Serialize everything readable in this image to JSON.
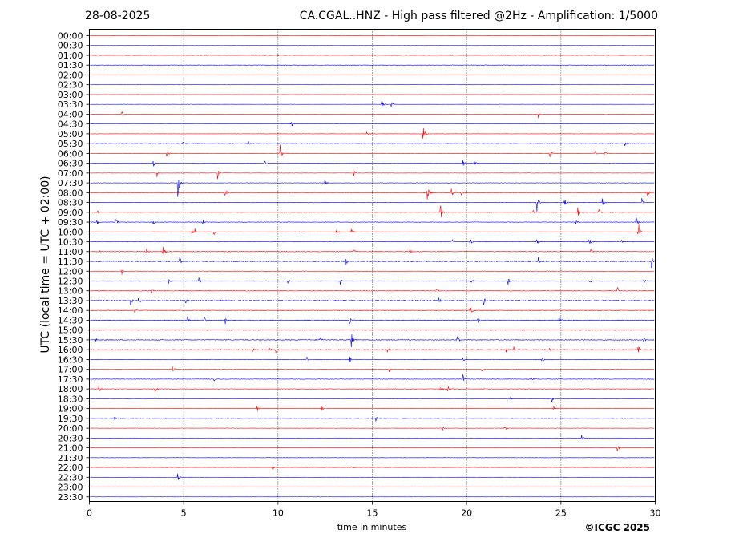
{
  "header": {
    "date": "28-08-2025",
    "title": "CA.CGAL..HNZ - High pass filtered @2Hz - Amplification: 1/5000"
  },
  "footer": {
    "copyright": "©ICGC 2025"
  },
  "chart_data": {
    "type": "line",
    "title": "CA.CGAL..HNZ - High pass filtered @2Hz - Amplification: 1/5000",
    "xlabel": "time in minutes",
    "ylabel": "UTC (local time = UTC + 02:00)",
    "xlim": [
      0,
      30
    ],
    "x_ticks": [
      0,
      5,
      10,
      15,
      20,
      25,
      30
    ],
    "grid_x": [
      5,
      10,
      15,
      20,
      25
    ],
    "grid_style": "dotted vertical lines",
    "colors": [
      "#ff0000",
      "#0000ff"
    ],
    "rows": [
      "00:00",
      "00:30",
      "01:00",
      "01:30",
      "02:00",
      "02:30",
      "03:00",
      "03:30",
      "04:00",
      "04:30",
      "05:00",
      "05:30",
      "06:00",
      "06:30",
      "07:00",
      "07:30",
      "08:00",
      "08:30",
      "09:00",
      "09:30",
      "10:00",
      "10:30",
      "11:00",
      "11:30",
      "12:00",
      "12:30",
      "13:00",
      "13:30",
      "14:00",
      "14:30",
      "15:00",
      "15:30",
      "16:00",
      "16:30",
      "17:00",
      "17:30",
      "18:00",
      "18:30",
      "19:00",
      "19:30",
      "20:00",
      "20:30",
      "21:00",
      "21:30",
      "22:00",
      "22:30",
      "23:00",
      "23:30"
    ],
    "noise_level": [
      1,
      1,
      2,
      3,
      1,
      1,
      1,
      1,
      2,
      1,
      2,
      3,
      2,
      2,
      2,
      2,
      3,
      3,
      3,
      3,
      3,
      4,
      4,
      5,
      3,
      5,
      4,
      6,
      4,
      5,
      4,
      5,
      4,
      3,
      3,
      3,
      3,
      2,
      2,
      2,
      2,
      2,
      2,
      2,
      2,
      1,
      1,
      1
    ],
    "events": [
      {
        "row": "03:30",
        "minute": 15.5,
        "amplitude": 6
      },
      {
        "row": "03:30",
        "minute": 16.0,
        "amplitude": 5
      },
      {
        "row": "04:00",
        "minute": 1.7,
        "amplitude": 6
      },
      {
        "row": "04:00",
        "minute": 23.8,
        "amplitude": 6
      },
      {
        "row": "04:30",
        "minute": 10.7,
        "amplitude": 6
      },
      {
        "row": "05:00",
        "minute": 14.7,
        "amplitude": 5
      },
      {
        "row": "05:00",
        "minute": 17.7,
        "amplitude": 14
      },
      {
        "row": "05:30",
        "minute": 4.9,
        "amplitude": 6
      },
      {
        "row": "05:30",
        "minute": 8.4,
        "amplitude": 5
      },
      {
        "row": "05:30",
        "minute": 28.4,
        "amplitude": 4
      },
      {
        "row": "06:00",
        "minute": 4.1,
        "amplitude": 7
      },
      {
        "row": "06:00",
        "minute": 10.1,
        "amplitude": 20
      },
      {
        "row": "06:00",
        "minute": 24.4,
        "amplitude": 7
      },
      {
        "row": "06:00",
        "minute": 26.8,
        "amplitude": 6
      },
      {
        "row": "06:00",
        "minute": 27.3,
        "amplitude": 5
      },
      {
        "row": "06:30",
        "minute": 3.4,
        "amplitude": 6
      },
      {
        "row": "06:30",
        "minute": 9.3,
        "amplitude": 5
      },
      {
        "row": "06:30",
        "minute": 19.8,
        "amplitude": 5
      },
      {
        "row": "06:30",
        "minute": 20.4,
        "amplitude": 5
      },
      {
        "row": "07:00",
        "minute": 3.6,
        "amplitude": 6
      },
      {
        "row": "07:00",
        "minute": 6.8,
        "amplitude": 9
      },
      {
        "row": "07:00",
        "minute": 14.0,
        "amplitude": 6
      },
      {
        "row": "07:30",
        "minute": 4.7,
        "amplitude": 18
      },
      {
        "row": "07:30",
        "minute": 12.5,
        "amplitude": 5
      },
      {
        "row": "08:00",
        "minute": 7.2,
        "amplitude": 7
      },
      {
        "row": "08:00",
        "minute": 17.9,
        "amplitude": 14
      },
      {
        "row": "08:00",
        "minute": 19.2,
        "amplitude": 5
      },
      {
        "row": "08:00",
        "minute": 19.7,
        "amplitude": 5
      },
      {
        "row": "08:00",
        "minute": 29.6,
        "amplitude": 5
      },
      {
        "row": "08:30",
        "minute": 23.7,
        "amplitude": 18
      },
      {
        "row": "08:30",
        "minute": 25.2,
        "amplitude": 6
      },
      {
        "row": "08:30",
        "minute": 27.2,
        "amplitude": 6
      },
      {
        "row": "08:30",
        "minute": 29.3,
        "amplitude": 6
      },
      {
        "row": "09:00",
        "minute": 18.6,
        "amplitude": 14
      },
      {
        "row": "09:00",
        "minute": 23.5,
        "amplitude": 5
      },
      {
        "row": "09:00",
        "minute": 25.9,
        "amplitude": 6
      },
      {
        "row": "09:00",
        "minute": 27.0,
        "amplitude": 5
      },
      {
        "row": "09:00",
        "minute": 0.4,
        "amplitude": 5
      },
      {
        "row": "09:30",
        "minute": 0.4,
        "amplitude": 5
      },
      {
        "row": "09:30",
        "minute": 1.4,
        "amplitude": 7
      },
      {
        "row": "09:30",
        "minute": 3.4,
        "amplitude": 5
      },
      {
        "row": "09:30",
        "minute": 6.0,
        "amplitude": 5
      },
      {
        "row": "09:30",
        "minute": 25.8,
        "amplitude": 5
      },
      {
        "row": "09:30",
        "minute": 29.0,
        "amplitude": 7
      },
      {
        "row": "10:00",
        "minute": 5.4,
        "amplitude": 5
      },
      {
        "row": "10:00",
        "minute": 5.6,
        "amplitude": 5
      },
      {
        "row": "10:00",
        "minute": 6.6,
        "amplitude": 4
      },
      {
        "row": "10:00",
        "minute": 13.1,
        "amplitude": 4
      },
      {
        "row": "10:00",
        "minute": 13.9,
        "amplitude": 4
      },
      {
        "row": "10:00",
        "minute": 29.1,
        "amplitude": 16
      },
      {
        "row": "10:30",
        "minute": 19.2,
        "amplitude": 5
      },
      {
        "row": "10:30",
        "minute": 20.2,
        "amplitude": 4
      },
      {
        "row": "10:30",
        "minute": 23.7,
        "amplitude": 5
      },
      {
        "row": "10:30",
        "minute": 26.5,
        "amplitude": 5
      },
      {
        "row": "10:30",
        "minute": 28.2,
        "amplitude": 3
      },
      {
        "row": "11:00",
        "minute": 0.5,
        "amplitude": 5
      },
      {
        "row": "11:00",
        "minute": 3.0,
        "amplitude": 5
      },
      {
        "row": "11:00",
        "minute": 3.9,
        "amplitude": 12
      },
      {
        "row": "11:00",
        "minute": 14.0,
        "amplitude": 5
      },
      {
        "row": "11:00",
        "minute": 17.0,
        "amplitude": 5
      },
      {
        "row": "11:00",
        "minute": 26.6,
        "amplitude": 4
      },
      {
        "row": "11:30",
        "minute": 4.8,
        "amplitude": 5
      },
      {
        "row": "11:30",
        "minute": 13.6,
        "amplitude": 5
      },
      {
        "row": "11:30",
        "minute": 23.8,
        "amplitude": 6
      },
      {
        "row": "11:30",
        "minute": 29.8,
        "amplitude": 10
      },
      {
        "row": "12:00",
        "minute": 1.7,
        "amplitude": 6
      },
      {
        "row": "12:30",
        "minute": 4.2,
        "amplitude": 4
      },
      {
        "row": "12:30",
        "minute": 5.8,
        "amplitude": 5
      },
      {
        "row": "12:30",
        "minute": 10.5,
        "amplitude": 4
      },
      {
        "row": "12:30",
        "minute": 13.3,
        "amplitude": 5
      },
      {
        "row": "12:30",
        "minute": 20.2,
        "amplitude": 5
      },
      {
        "row": "12:30",
        "minute": 22.2,
        "amplitude": 6
      },
      {
        "row": "12:30",
        "minute": 26.5,
        "amplitude": 5
      },
      {
        "row": "12:30",
        "minute": 29.4,
        "amplitude": 5
      },
      {
        "row": "13:00",
        "minute": 3.3,
        "amplitude": 4
      },
      {
        "row": "13:00",
        "minute": 18.4,
        "amplitude": 4
      },
      {
        "row": "13:00",
        "minute": 28.0,
        "amplitude": 5
      },
      {
        "row": "13:30",
        "minute": 2.2,
        "amplitude": 6
      },
      {
        "row": "13:30",
        "minute": 2.6,
        "amplitude": 6
      },
      {
        "row": "13:30",
        "minute": 5.1,
        "amplitude": 5
      },
      {
        "row": "13:30",
        "minute": 18.5,
        "amplitude": 5
      },
      {
        "row": "13:30",
        "minute": 20.9,
        "amplitude": 6
      },
      {
        "row": "14:00",
        "minute": 2.4,
        "amplitude": 5
      },
      {
        "row": "14:00",
        "minute": 20.2,
        "amplitude": 7
      },
      {
        "row": "14:30",
        "minute": 5.2,
        "amplitude": 5
      },
      {
        "row": "14:30",
        "minute": 6.1,
        "amplitude": 5
      },
      {
        "row": "14:30",
        "minute": 7.2,
        "amplitude": 6
      },
      {
        "row": "14:30",
        "minute": 13.8,
        "amplitude": 6
      },
      {
        "row": "14:30",
        "minute": 20.6,
        "amplitude": 5
      },
      {
        "row": "14:30",
        "minute": 24.9,
        "amplitude": 6
      },
      {
        "row": "15:30",
        "minute": 0.3,
        "amplitude": 5
      },
      {
        "row": "15:30",
        "minute": 12.2,
        "amplitude": 5
      },
      {
        "row": "15:30",
        "minute": 13.9,
        "amplitude": 12
      },
      {
        "row": "15:30",
        "minute": 19.5,
        "amplitude": 5
      },
      {
        "row": "15:30",
        "minute": 26.1,
        "amplitude": 5
      },
      {
        "row": "15:30",
        "minute": 29.4,
        "amplitude": 4
      },
      {
        "row": "16:00",
        "minute": 8.6,
        "amplitude": 5
      },
      {
        "row": "16:00",
        "minute": 9.5,
        "amplitude": 5
      },
      {
        "row": "16:00",
        "minute": 9.9,
        "amplitude": 5
      },
      {
        "row": "16:00",
        "minute": 15.8,
        "amplitude": 5
      },
      {
        "row": "16:00",
        "minute": 22.1,
        "amplitude": 5
      },
      {
        "row": "16:00",
        "minute": 22.5,
        "amplitude": 4
      },
      {
        "row": "16:00",
        "minute": 24.4,
        "amplitude": 4
      },
      {
        "row": "16:00",
        "minute": 29.1,
        "amplitude": 6
      },
      {
        "row": "16:30",
        "minute": 11.5,
        "amplitude": 6
      },
      {
        "row": "16:30",
        "minute": 13.8,
        "amplitude": 4
      },
      {
        "row": "16:30",
        "minute": 19.8,
        "amplitude": 5
      },
      {
        "row": "16:30",
        "minute": 24.0,
        "amplitude": 5
      },
      {
        "row": "17:00",
        "minute": 4.4,
        "amplitude": 5
      },
      {
        "row": "17:00",
        "minute": 15.9,
        "amplitude": 4
      },
      {
        "row": "17:00",
        "minute": 20.8,
        "amplitude": 3
      },
      {
        "row": "17:30",
        "minute": 6.6,
        "amplitude": 5
      },
      {
        "row": "17:30",
        "minute": 19.8,
        "amplitude": 6
      },
      {
        "row": "17:30",
        "minute": 23.4,
        "amplitude": 4
      },
      {
        "row": "18:00",
        "minute": 0.5,
        "amplitude": 6
      },
      {
        "row": "18:00",
        "minute": 3.5,
        "amplitude": 5
      },
      {
        "row": "18:00",
        "minute": 18.6,
        "amplitude": 5
      },
      {
        "row": "18:00",
        "minute": 19.0,
        "amplitude": 5
      },
      {
        "row": "18:30",
        "minute": 22.3,
        "amplitude": 4
      },
      {
        "row": "18:30",
        "minute": 24.5,
        "amplitude": 5
      },
      {
        "row": "19:00",
        "minute": 8.9,
        "amplitude": 4
      },
      {
        "row": "19:00",
        "minute": 12.3,
        "amplitude": 5
      },
      {
        "row": "19:00",
        "minute": 24.6,
        "amplitude": 4
      },
      {
        "row": "19:30",
        "minute": 1.3,
        "amplitude": 5
      },
      {
        "row": "19:30",
        "minute": 15.2,
        "amplitude": 4
      },
      {
        "row": "20:00",
        "minute": 18.7,
        "amplitude": 4
      },
      {
        "row": "20:00",
        "minute": 22.0,
        "amplitude": 5
      },
      {
        "row": "20:30",
        "minute": 26.1,
        "amplitude": 4
      },
      {
        "row": "21:00",
        "minute": 28.0,
        "amplitude": 4
      },
      {
        "row": "22:00",
        "minute": 9.7,
        "amplitude": 4
      },
      {
        "row": "22:00",
        "minute": 13.9,
        "amplitude": 3
      },
      {
        "row": "22:30",
        "minute": 4.7,
        "amplitude": 5
      }
    ]
  }
}
